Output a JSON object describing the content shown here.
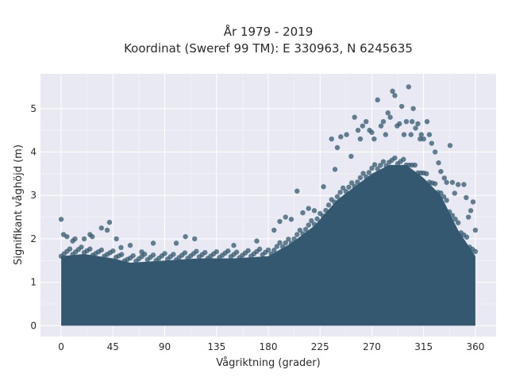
{
  "chart_data": {
    "type": "scatter",
    "title_lines": [
      "År 1979 - 2019",
      "Koordinat (Sweref 99 TM): E 330963, N 6245635"
    ],
    "xlabel": "Vågriktning (grader)",
    "ylabel": "Signifikant våghöjd (m)",
    "xlim": [
      -18,
      378
    ],
    "ylim": [
      -0.25,
      5.8
    ],
    "xticks": [
      0,
      45,
      90,
      135,
      180,
      225,
      270,
      315,
      360
    ],
    "yticks": [
      0,
      1,
      2,
      3,
      4,
      5
    ],
    "grid": true,
    "legend": "none",
    "colors": {
      "background": "#e8e9f2",
      "grid": "#ffffff",
      "marker": "#33586f"
    },
    "envelope": {
      "x": [
        0,
        20,
        45,
        60,
        90,
        120,
        150,
        180,
        200,
        220,
        240,
        255,
        270,
        285,
        300,
        315,
        330,
        345,
        360
      ],
      "ymax": [
        1.6,
        1.65,
        1.55,
        1.45,
        1.5,
        1.55,
        1.55,
        1.6,
        1.9,
        2.3,
        2.9,
        3.2,
        3.5,
        3.7,
        3.7,
        3.4,
        3.0,
        2.2,
        1.6
      ]
    },
    "points": [
      [
        0,
        2.45
      ],
      [
        2,
        2.1
      ],
      [
        5,
        2.05
      ],
      [
        10,
        1.95
      ],
      [
        12,
        2.0
      ],
      [
        20,
        2.0
      ],
      [
        25,
        2.1
      ],
      [
        27,
        2.05
      ],
      [
        35,
        2.25
      ],
      [
        40,
        2.2
      ],
      [
        42,
        2.38
      ],
      [
        48,
        2.0
      ],
      [
        52,
        1.8
      ],
      [
        60,
        1.85
      ],
      [
        70,
        1.7
      ],
      [
        80,
        1.9
      ],
      [
        100,
        1.9
      ],
      [
        108,
        2.05
      ],
      [
        116,
        2.0
      ],
      [
        150,
        1.85
      ],
      [
        170,
        1.95
      ],
      [
        185,
        2.2
      ],
      [
        190,
        2.4
      ],
      [
        195,
        2.5
      ],
      [
        200,
        2.45
      ],
      [
        205,
        3.1
      ],
      [
        210,
        2.6
      ],
      [
        215,
        2.7
      ],
      [
        220,
        2.65
      ],
      [
        228,
        3.2
      ],
      [
        235,
        4.3
      ],
      [
        238,
        3.6
      ],
      [
        240,
        4.1
      ],
      [
        243,
        4.35
      ],
      [
        248,
        4.4
      ],
      [
        252,
        3.9
      ],
      [
        255,
        4.8
      ],
      [
        258,
        4.5
      ],
      [
        260,
        4.3
      ],
      [
        262,
        4.6
      ],
      [
        265,
        4.7
      ],
      [
        268,
        4.5
      ],
      [
        270,
        4.45
      ],
      [
        272,
        4.3
      ],
      [
        275,
        5.2
      ],
      [
        278,
        4.6
      ],
      [
        280,
        4.7
      ],
      [
        282,
        4.4
      ],
      [
        284,
        4.9
      ],
      [
        286,
        4.8
      ],
      [
        288,
        5.4
      ],
      [
        290,
        5.3
      ],
      [
        292,
        4.6
      ],
      [
        294,
        4.65
      ],
      [
        296,
        5.05
      ],
      [
        298,
        4.4
      ],
      [
        300,
        4.7
      ],
      [
        302,
        5.5
      ],
      [
        304,
        4.4
      ],
      [
        305,
        4.7
      ],
      [
        306,
        5.0
      ],
      [
        308,
        4.55
      ],
      [
        310,
        4.65
      ],
      [
        312,
        4.3
      ],
      [
        313,
        4.4
      ],
      [
        315,
        4.3
      ],
      [
        318,
        4.7
      ],
      [
        320,
        4.4
      ],
      [
        322,
        4.2
      ],
      [
        325,
        4.0
      ],
      [
        328,
        3.75
      ],
      [
        330,
        3.55
      ],
      [
        333,
        3.4
      ],
      [
        335,
        3.3
      ],
      [
        338,
        4.15
      ],
      [
        340,
        3.3
      ],
      [
        342,
        3.05
      ],
      [
        345,
        3.25
      ],
      [
        350,
        3.25
      ],
      [
        352,
        2.95
      ],
      [
        354,
        2.5
      ],
      [
        356,
        2.65
      ],
      [
        358,
        2.85
      ],
      [
        360,
        2.2
      ]
    ]
  }
}
